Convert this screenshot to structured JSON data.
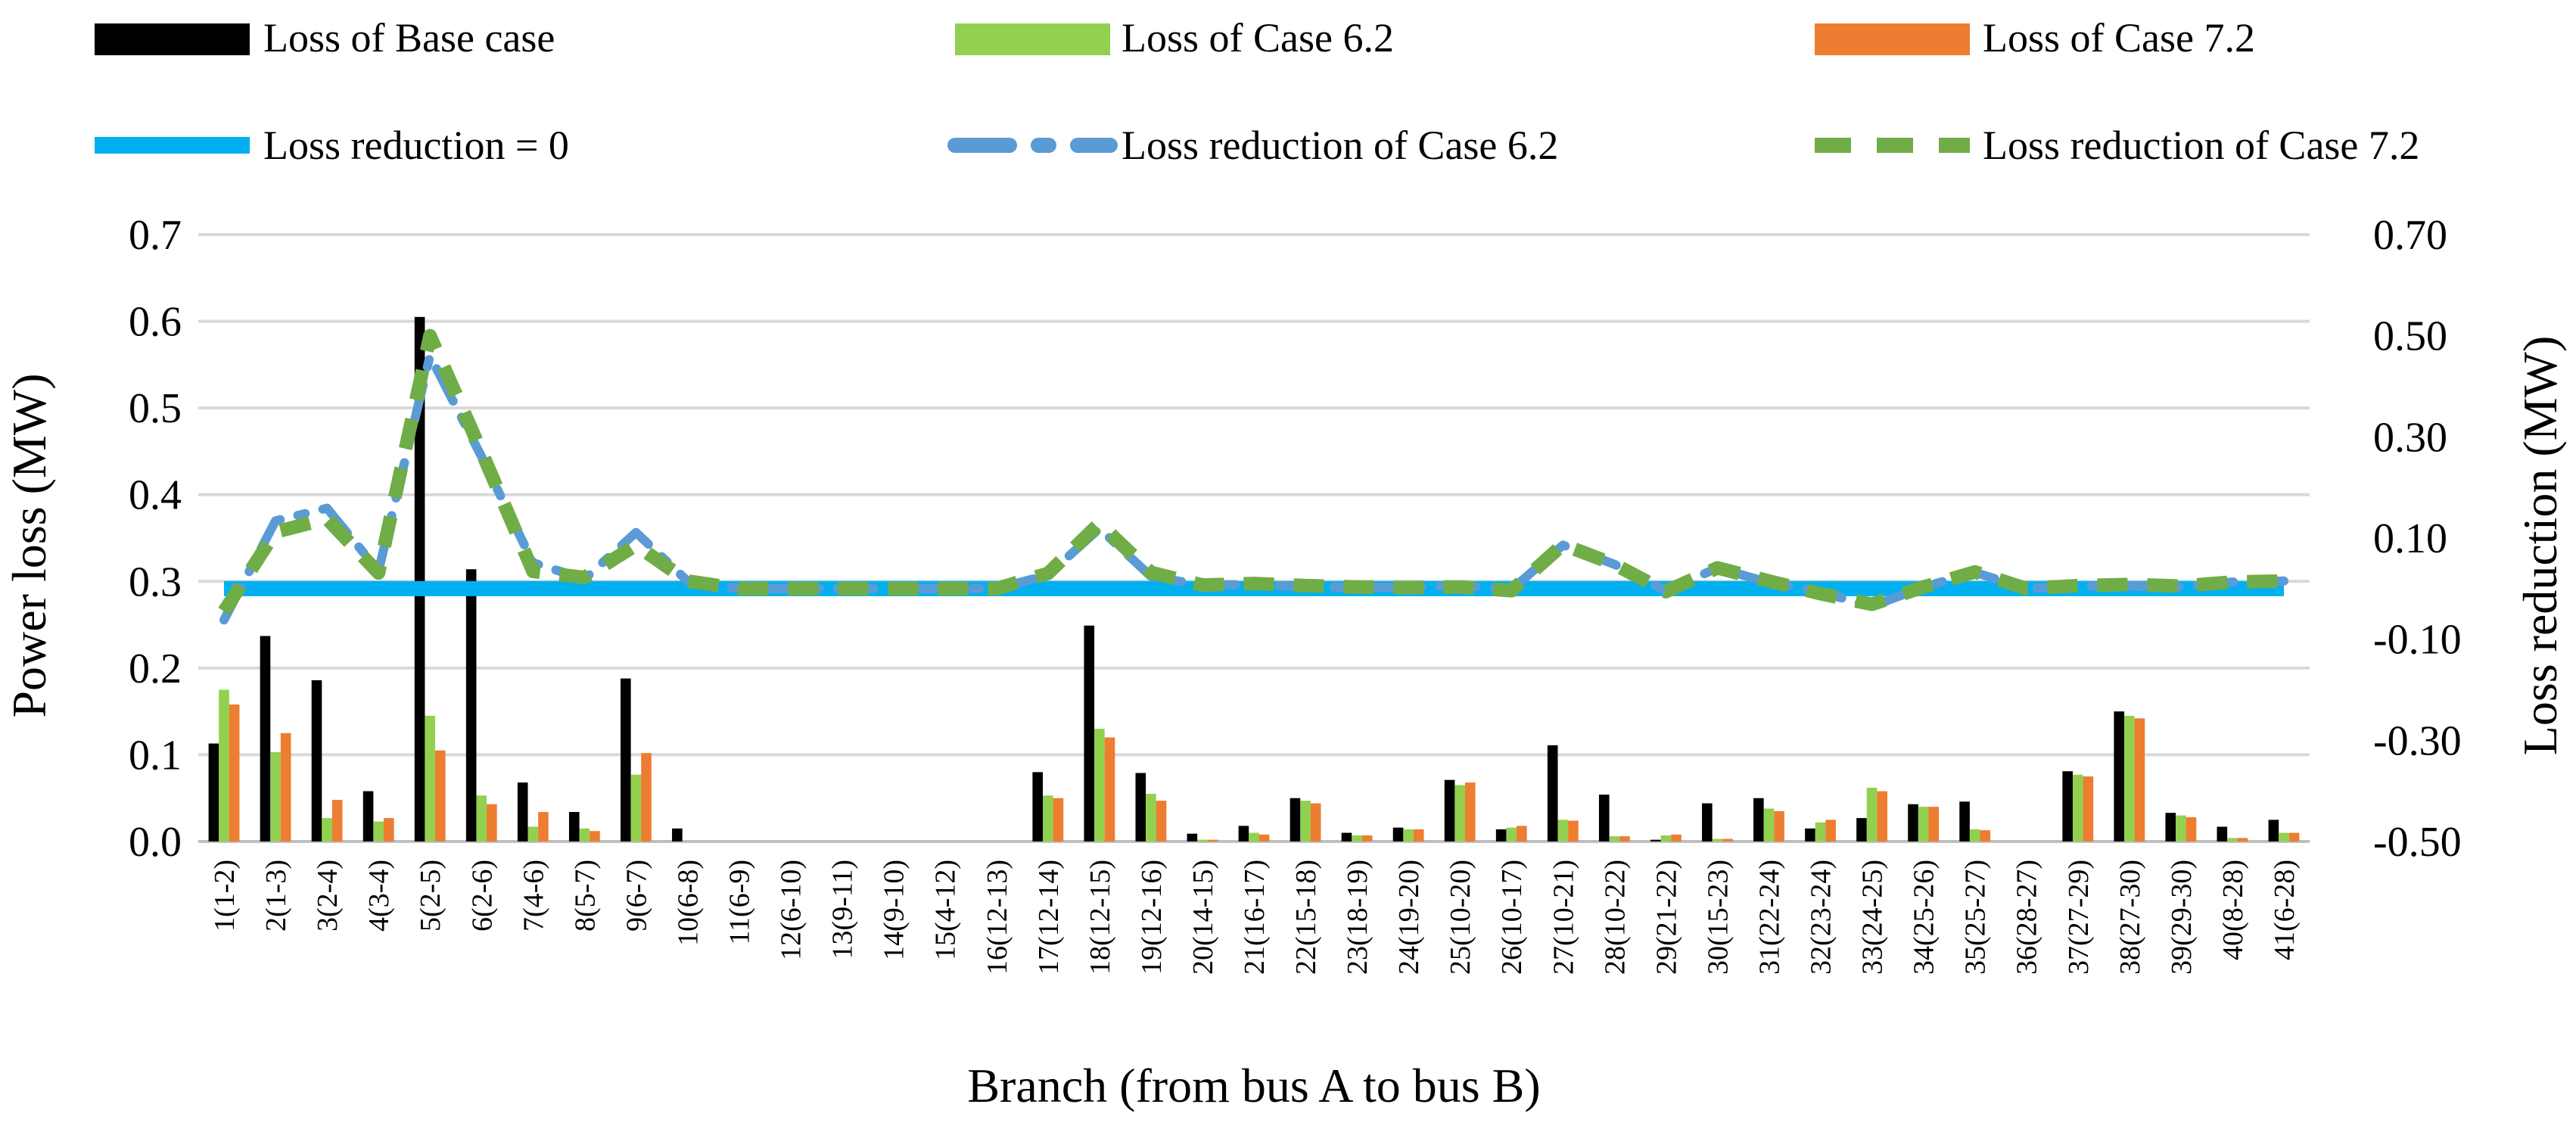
{
  "chart_data": {
    "type": "bar",
    "xlabel": "Branch (from bus A to bus B)",
    "ylabel": "Power loss (MW)",
    "y2label": "Loss reduction (MW)",
    "ylim": [
      0,
      0.7
    ],
    "y2lim": [
      -0.5,
      0.7
    ],
    "yticks": [
      "0.0",
      "0.1",
      "0.2",
      "0.3",
      "0.4",
      "0.5",
      "0.6",
      "0.7"
    ],
    "y2ticks": [
      "-0.50",
      "-0.30",
      "-0.10",
      "0.10",
      "0.30",
      "0.50",
      "0.70"
    ],
    "grid": true,
    "legend_position": "top",
    "categories": [
      "1(1-2)",
      "2(1-3)",
      "3(2-4)",
      "4(3-4)",
      "5(2-5)",
      "6(2-6)",
      "7(4-6)",
      "8(5-7)",
      "9(6-7)",
      "10(6-8)",
      "11(6-9)",
      "12(6-10)",
      "13(9-11)",
      "14(9-10)",
      "15(4-12)",
      "16(12-13)",
      "17(12-14)",
      "18(12-15)",
      "19(12-16)",
      "20(14-15)",
      "21(16-17)",
      "22(15-18)",
      "23(18-19)",
      "24(19-20)",
      "25(10-20)",
      "26(10-17)",
      "27(10-21)",
      "28(10-22)",
      "29(21-22)",
      "30(15-23)",
      "31(22-24)",
      "32(23-24)",
      "33(24-25)",
      "34(25-26)",
      "35(25-27)",
      "36(28-27)",
      "37(27-29)",
      "38(27-30)",
      "39(29-30)",
      "40(8-28)",
      "41(6-28)"
    ],
    "bar_series": [
      {
        "name": "Loss of Base case",
        "color": "#000000",
        "values": [
          0.113,
          0.237,
          0.186,
          0.058,
          0.605,
          0.314,
          0.068,
          0.034,
          0.188,
          0.015,
          0,
          0,
          0,
          0,
          0,
          0,
          0.08,
          0.249,
          0.079,
          0.009,
          0.018,
          0.05,
          0.01,
          0.016,
          0.071,
          0.014,
          0.111,
          0.054,
          0.002,
          0.044,
          0.05,
          0.015,
          0.027,
          0.043,
          0.046,
          0,
          0.081,
          0.15,
          0.033,
          0.017,
          0.025
        ]
      },
      {
        "name": "Loss of Case 6.2",
        "color": "#92D050",
        "values": [
          0.175,
          0.103,
          0.027,
          0.023,
          0.145,
          0.053,
          0.017,
          0.015,
          0.077,
          0,
          0,
          0,
          0,
          0,
          0,
          0,
          0.053,
          0.13,
          0.055,
          0.002,
          0.01,
          0.047,
          0.007,
          0.014,
          0.065,
          0.016,
          0.025,
          0.006,
          0.007,
          0.003,
          0.038,
          0.022,
          0.062,
          0.04,
          0.014,
          0,
          0.077,
          0.145,
          0.03,
          0.004,
          0.01
        ]
      },
      {
        "name": "Loss of Case 7.2",
        "color": "#ED7D31",
        "values": [
          0.158,
          0.125,
          0.048,
          0.027,
          0.105,
          0.043,
          0.034,
          0.012,
          0.102,
          0,
          0,
          0,
          0,
          0,
          0,
          0,
          0.05,
          0.12,
          0.047,
          0.002,
          0.008,
          0.044,
          0.007,
          0.014,
          0.068,
          0.018,
          0.024,
          0.006,
          0.008,
          0.003,
          0.035,
          0.025,
          0.058,
          0.04,
          0.013,
          0,
          0.075,
          0.142,
          0.028,
          0.004,
          0.01
        ]
      }
    ],
    "line_series": [
      {
        "name": "Loss reduction = 0",
        "color": "#00B0F0",
        "style": "solid",
        "values": [
          0,
          0,
          0,
          0,
          0,
          0,
          0,
          0,
          0,
          0,
          0,
          0,
          0,
          0,
          0,
          0,
          0,
          0,
          0,
          0,
          0,
          0,
          0,
          0,
          0,
          0,
          0,
          0,
          0,
          0,
          0,
          0,
          0,
          0,
          0,
          0,
          0,
          0,
          0,
          0,
          0
        ]
      },
      {
        "name": "Loss reduction of Case 6.2",
        "color": "#5B9BD5",
        "style": "dash-dot",
        "values": [
          -0.062,
          0.134,
          0.159,
          0.035,
          0.46,
          0.261,
          0.051,
          0.019,
          0.111,
          0.015,
          0,
          0,
          0,
          0,
          0,
          0,
          0.027,
          0.119,
          0.024,
          0.007,
          0.008,
          0.003,
          0.003,
          0.002,
          0.006,
          -0.002,
          0.086,
          0.048,
          -0.005,
          0.041,
          0.012,
          -0.007,
          -0.035,
          0.003,
          0.032,
          0,
          0.004,
          0.005,
          0.003,
          0.013,
          0.015
        ]
      },
      {
        "name": "Loss reduction of Case 7.2",
        "color": "#70AD47",
        "style": "dash",
        "values": [
          -0.045,
          0.112,
          0.138,
          0.031,
          0.5,
          0.271,
          0.034,
          0.022,
          0.086,
          0.015,
          0,
          0,
          0,
          0,
          0,
          0,
          0.03,
          0.129,
          0.032,
          0.007,
          0.01,
          0.006,
          0.003,
          0.002,
          0.003,
          -0.004,
          0.087,
          0.048,
          -0.006,
          0.041,
          0.015,
          -0.01,
          -0.031,
          0.003,
          0.033,
          0,
          0.006,
          0.008,
          0.005,
          0.013,
          0.015
        ]
      }
    ]
  }
}
